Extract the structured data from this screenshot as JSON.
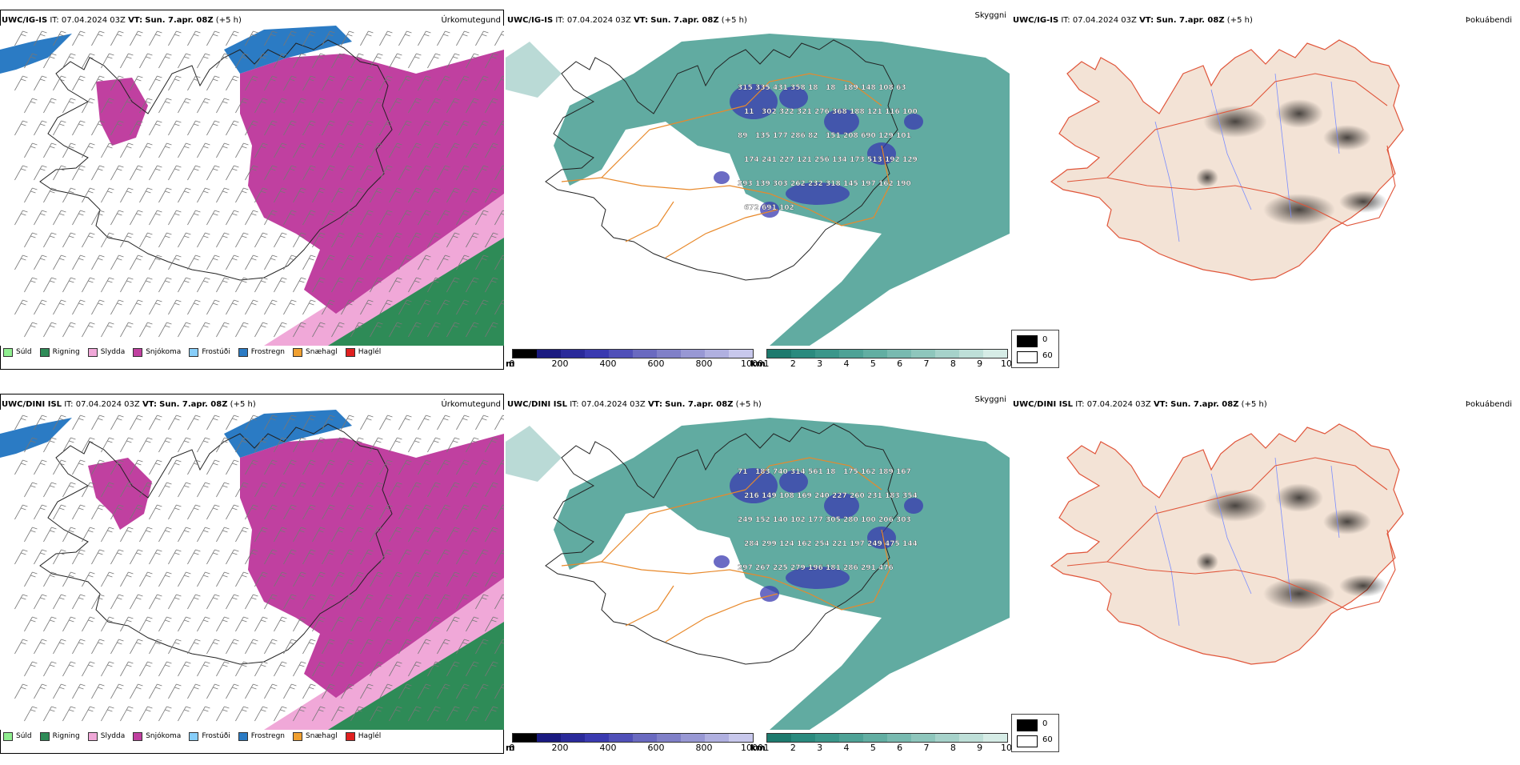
{
  "panels": [
    {
      "model": "UWC/IG-IS",
      "it_label": "IT:",
      "it": "07.04.2024 03Z",
      "vt_label": "VT:",
      "vt": "Sun. 7.apr. 08Z",
      "offset": "(+5 h)",
      "title": "Úrkomutegund"
    },
    {
      "model": "UWC/IG-IS",
      "it_label": "IT:",
      "it": "07.04.2024 03Z",
      "vt_label": "VT:",
      "vt": "Sun. 7.apr. 08Z",
      "offset": "(+5 h)",
      "title": "Skyggni"
    },
    {
      "model": "UWC/IG-IS",
      "it_label": "IT:",
      "it": "07.04.2024 03Z",
      "vt_label": "VT:",
      "vt": "Sun. 7.apr. 08Z",
      "offset": "(+5 h)",
      "title": "Þokuábendi"
    },
    {
      "model": "UWC/DINI ISL",
      "it_label": "IT:",
      "it": "07.04.2024 03Z",
      "vt_label": "VT:",
      "vt": "Sun. 7.apr. 08Z",
      "offset": "(+5 h)",
      "title": "Úrkomutegund"
    },
    {
      "model": "UWC/DINI ISL",
      "it_label": "IT:",
      "it": "07.04.2024 03Z",
      "vt_label": "VT:",
      "vt": "Sun. 7.apr. 08Z",
      "offset": "(+5 h)",
      "title": "Skyggni"
    },
    {
      "model": "UWC/DINI ISL",
      "it_label": "IT:",
      "it": "07.04.2024 03Z",
      "vt_label": "VT:",
      "vt": "Sun. 7.apr. 08Z",
      "offset": "(+5 h)",
      "title": "Þokuábendi"
    }
  ],
  "precip_legend": [
    {
      "label": "Súld",
      "color": "#90ee90"
    },
    {
      "label": "Rigning",
      "color": "#2e8b57"
    },
    {
      "label": "Slydda",
      "color": "#f0a8d8"
    },
    {
      "label": "Snjókoma",
      "color": "#c040a0"
    },
    {
      "label": "Frostúði",
      "color": "#87cefa"
    },
    {
      "label": "Frostregn",
      "color": "#2b7bc4"
    },
    {
      "label": "Snæhagl",
      "color": "#f0a030"
    },
    {
      "label": "Haglél",
      "color": "#e02020"
    }
  ],
  "height_bar": {
    "unit": "m",
    "ticks": [
      "0",
      "200",
      "400",
      "600",
      "800",
      "1000"
    ],
    "colors": [
      "#000000",
      "#1a1a80",
      "#2a2a9a",
      "#3a3ab0",
      "#5050b8",
      "#6a6ac0",
      "#8080c8",
      "#9898d4",
      "#b0b0e0",
      "#c8c8ec"
    ]
  },
  "vis_bar": {
    "unit": "km",
    "ticks": [
      "1",
      "2",
      "3",
      "4",
      "5",
      "6",
      "7",
      "8",
      "9",
      "10"
    ],
    "colors": [
      "#1e7a6e",
      "#2a8a7e",
      "#3a968a",
      "#4ea296",
      "#62aea2",
      "#78bab0",
      "#8ec6bc",
      "#a6d2ca",
      "#bedfd8",
      "#d6ece6"
    ]
  },
  "fog_legend": [
    {
      "label": "0",
      "color": "#000000"
    },
    {
      "label": "60",
      "color": "#ffffff"
    }
  ],
  "colors": {
    "snow": "#c040a0",
    "rain": "#2e8b57",
    "sleet": "#f0a8d8",
    "freezing_rain": "#2b7bc4",
    "vis": "#3a968a",
    "roads": "#e8892b",
    "fog_land": "#f3e3d6",
    "fog_roads": "#e0553a",
    "rivers": "#7a8cff"
  },
  "labels_ig": [
    "315",
    "335",
    "431",
    "358",
    "18",
    "18",
    "189",
    "148",
    "108",
    "63",
    "11",
    "302",
    "322",
    "321",
    "276",
    "368",
    "188",
    "121",
    "116",
    "100",
    "89",
    "135",
    "177",
    "286",
    "82",
    "151",
    "208",
    "690",
    "129",
    "101",
    "174",
    "241",
    "227",
    "121",
    "256",
    "134",
    "173",
    "513",
    "192",
    "129",
    "393",
    "139",
    "303",
    "262",
    "232",
    "318",
    "145",
    "197",
    "162",
    "190",
    "672",
    "691",
    "102"
  ],
  "labels_dini": [
    "71",
    "183",
    "740",
    "314",
    "561",
    "18",
    "175",
    "162",
    "189",
    "167",
    "216",
    "149",
    "108",
    "169",
    "240",
    "227",
    "260",
    "231",
    "183",
    "354",
    "249",
    "152",
    "140",
    "102",
    "177",
    "305",
    "280",
    "100",
    "206",
    "303",
    "284",
    "299",
    "124",
    "162",
    "254",
    "221",
    "197",
    "249",
    "475",
    "144",
    "297",
    "267",
    "225",
    "279",
    "196",
    "181",
    "286",
    "291",
    "476"
  ]
}
